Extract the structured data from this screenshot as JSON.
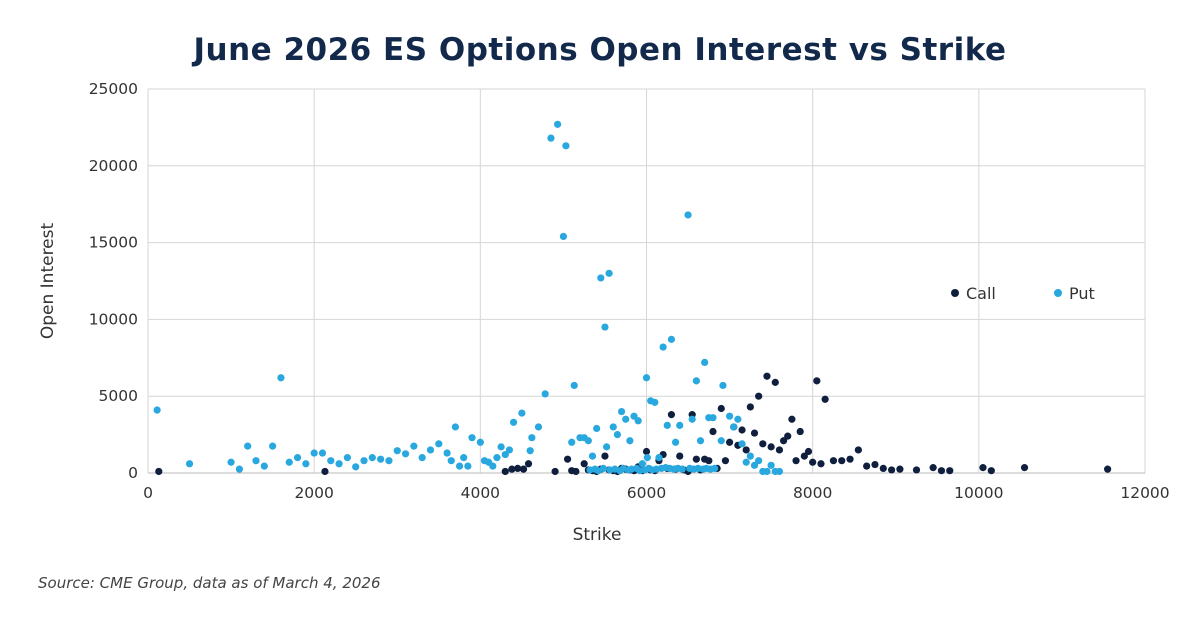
{
  "chart_data": {
    "type": "scatter",
    "title": "June 2026 ES Options Open Interest vs Strike",
    "xlabel": "Strike",
    "ylabel": "Open Interest",
    "xlim": [
      0,
      12000
    ],
    "ylim": [
      0,
      25000
    ],
    "xticks": [
      "0",
      "2000",
      "4000",
      "6000",
      "8000",
      "10000",
      "12000"
    ],
    "yticks": [
      "0",
      "5000",
      "10000",
      "15000",
      "20000",
      "25000"
    ],
    "grid": true,
    "legend_position": "right",
    "series": [
      {
        "name": "Call",
        "color": "#0f1f3d",
        "points": [
          [
            130,
            100
          ],
          [
            2130,
            100
          ],
          [
            4300,
            100
          ],
          [
            4380,
            250
          ],
          [
            4450,
            300
          ],
          [
            4520,
            250
          ],
          [
            4580,
            600
          ],
          [
            4900,
            100
          ],
          [
            5050,
            900
          ],
          [
            5100,
            150
          ],
          [
            5150,
            100
          ],
          [
            5250,
            600
          ],
          [
            5300,
            200
          ],
          [
            5350,
            150
          ],
          [
            5400,
            100
          ],
          [
            5450,
            250
          ],
          [
            5500,
            1100
          ],
          [
            5550,
            200
          ],
          [
            5600,
            150
          ],
          [
            5650,
            100
          ],
          [
            5700,
            300
          ],
          [
            5750,
            250
          ],
          [
            5800,
            200
          ],
          [
            5850,
            150
          ],
          [
            5900,
            400
          ],
          [
            5950,
            150
          ],
          [
            6000,
            1400
          ],
          [
            6050,
            200
          ],
          [
            6100,
            150
          ],
          [
            6150,
            800
          ],
          [
            6200,
            1200
          ],
          [
            6250,
            300
          ],
          [
            6300,
            3800
          ],
          [
            6350,
            250
          ],
          [
            6400,
            1100
          ],
          [
            6450,
            200
          ],
          [
            6500,
            100
          ],
          [
            6550,
            3800
          ],
          [
            6600,
            900
          ],
          [
            6650,
            200
          ],
          [
            6700,
            900
          ],
          [
            6750,
            800
          ],
          [
            6800,
            2700
          ],
          [
            6850,
            300
          ],
          [
            6900,
            4200
          ],
          [
            6950,
            800
          ],
          [
            7000,
            2000
          ],
          [
            7050,
            3000
          ],
          [
            7100,
            1800
          ],
          [
            7150,
            2800
          ],
          [
            7200,
            1500
          ],
          [
            7250,
            4300
          ],
          [
            7300,
            2600
          ],
          [
            7350,
            5000
          ],
          [
            7400,
            1900
          ],
          [
            7450,
            6300
          ],
          [
            7500,
            1700
          ],
          [
            7550,
            5900
          ],
          [
            7600,
            1500
          ],
          [
            7650,
            2100
          ],
          [
            7700,
            2400
          ],
          [
            7750,
            3500
          ],
          [
            7800,
            800
          ],
          [
            7850,
            2700
          ],
          [
            7900,
            1100
          ],
          [
            7950,
            1400
          ],
          [
            8000,
            700
          ],
          [
            8050,
            6000
          ],
          [
            8100,
            600
          ],
          [
            8150,
            4800
          ],
          [
            8250,
            800
          ],
          [
            8350,
            800
          ],
          [
            8450,
            900
          ],
          [
            8550,
            1500
          ],
          [
            8650,
            450
          ],
          [
            8750,
            550
          ],
          [
            8850,
            300
          ],
          [
            8950,
            200
          ],
          [
            9050,
            250
          ],
          [
            9250,
            200
          ],
          [
            9450,
            350
          ],
          [
            9550,
            150
          ],
          [
            9650,
            150
          ],
          [
            10050,
            350
          ],
          [
            10150,
            150
          ],
          [
            10550,
            350
          ],
          [
            11550,
            250
          ]
        ]
      },
      {
        "name": "Put",
        "color": "#29a8df",
        "points": [
          [
            110,
            4100
          ],
          [
            500,
            600
          ],
          [
            1000,
            700
          ],
          [
            1100,
            250
          ],
          [
            1200,
            1750
          ],
          [
            1300,
            800
          ],
          [
            1400,
            450
          ],
          [
            1500,
            1750
          ],
          [
            1600,
            6200
          ],
          [
            1700,
            700
          ],
          [
            1800,
            1000
          ],
          [
            1900,
            600
          ],
          [
            2000,
            1300
          ],
          [
            2100,
            1300
          ],
          [
            2200,
            800
          ],
          [
            2300,
            600
          ],
          [
            2400,
            1000
          ],
          [
            2500,
            400
          ],
          [
            2600,
            800
          ],
          [
            2700,
            1000
          ],
          [
            2800,
            900
          ],
          [
            2900,
            800
          ],
          [
            3000,
            1450
          ],
          [
            3100,
            1250
          ],
          [
            3200,
            1750
          ],
          [
            3300,
            1000
          ],
          [
            3400,
            1500
          ],
          [
            3500,
            1900
          ],
          [
            3600,
            1300
          ],
          [
            3650,
            800
          ],
          [
            3700,
            3000
          ],
          [
            3750,
            450
          ],
          [
            3800,
            1000
          ],
          [
            3850,
            450
          ],
          [
            3900,
            2300
          ],
          [
            4000,
            2000
          ],
          [
            4050,
            800
          ],
          [
            4100,
            700
          ],
          [
            4150,
            450
          ],
          [
            4200,
            1000
          ],
          [
            4250,
            1700
          ],
          [
            4300,
            1200
          ],
          [
            4350,
            1500
          ],
          [
            4400,
            3300
          ],
          [
            4500,
            3900
          ],
          [
            4600,
            1450
          ],
          [
            4620,
            2300
          ],
          [
            4700,
            3000
          ],
          [
            4780,
            5150
          ],
          [
            4850,
            21800
          ],
          [
            4930,
            22700
          ],
          [
            5000,
            15400
          ],
          [
            5030,
            21300
          ],
          [
            5100,
            2000
          ],
          [
            5130,
            5700
          ],
          [
            5200,
            2300
          ],
          [
            5250,
            2300
          ],
          [
            5300,
            2100
          ],
          [
            5320,
            200
          ],
          [
            5350,
            1100
          ],
          [
            5380,
            250
          ],
          [
            5400,
            2900
          ],
          [
            5420,
            150
          ],
          [
            5450,
            12700
          ],
          [
            5480,
            300
          ],
          [
            5500,
            9500
          ],
          [
            5520,
            1700
          ],
          [
            5550,
            13000
          ],
          [
            5560,
            200
          ],
          [
            5600,
            3000
          ],
          [
            5620,
            250
          ],
          [
            5650,
            2500
          ],
          [
            5680,
            150
          ],
          [
            5700,
            4000
          ],
          [
            5720,
            300
          ],
          [
            5750,
            3500
          ],
          [
            5780,
            200
          ],
          [
            5800,
            2100
          ],
          [
            5820,
            250
          ],
          [
            5850,
            3700
          ],
          [
            5880,
            300
          ],
          [
            5900,
            3400
          ],
          [
            5920,
            150
          ],
          [
            5950,
            600
          ],
          [
            5980,
            200
          ],
          [
            6000,
            6200
          ],
          [
            6010,
            1000
          ],
          [
            6030,
            300
          ],
          [
            6050,
            4700
          ],
          [
            6070,
            200
          ],
          [
            6100,
            4600
          ],
          [
            6120,
            250
          ],
          [
            6150,
            1000
          ],
          [
            6180,
            300
          ],
          [
            6200,
            8200
          ],
          [
            6230,
            350
          ],
          [
            6250,
            3100
          ],
          [
            6280,
            300
          ],
          [
            6300,
            8700
          ],
          [
            6330,
            250
          ],
          [
            6350,
            2000
          ],
          [
            6380,
            300
          ],
          [
            6400,
            3100
          ],
          [
            6430,
            250
          ],
          [
            6500,
            16800
          ],
          [
            6520,
            300
          ],
          [
            6550,
            3500
          ],
          [
            6570,
            250
          ],
          [
            6600,
            6000
          ],
          [
            6620,
            300
          ],
          [
            6650,
            2100
          ],
          [
            6680,
            250
          ],
          [
            6700,
            7200
          ],
          [
            6720,
            300
          ],
          [
            6750,
            3600
          ],
          [
            6770,
            250
          ],
          [
            6800,
            3600
          ],
          [
            6820,
            300
          ],
          [
            6900,
            2100
          ],
          [
            6920,
            5700
          ],
          [
            7000,
            3700
          ],
          [
            7050,
            3000
          ],
          [
            7100,
            3500
          ],
          [
            7150,
            1900
          ],
          [
            7200,
            700
          ],
          [
            7250,
            1100
          ],
          [
            7300,
            500
          ],
          [
            7350,
            800
          ],
          [
            7400,
            100
          ],
          [
            7450,
            100
          ],
          [
            7500,
            500
          ],
          [
            7550,
            100
          ],
          [
            7600,
            100
          ]
        ]
      }
    ]
  },
  "source": "Source: CME Group, data as of March 4, 2026"
}
